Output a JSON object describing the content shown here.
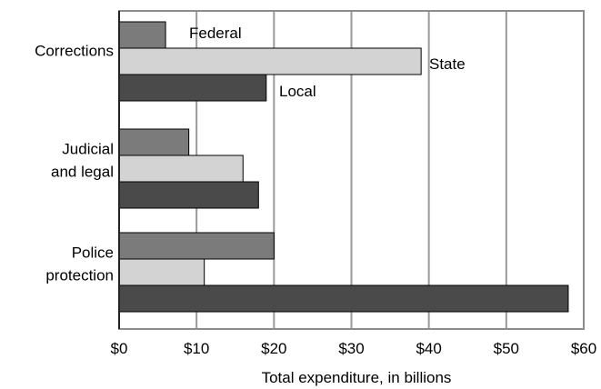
{
  "chart_data": {
    "type": "bar",
    "orientation": "horizontal",
    "categories": [
      [
        "Corrections"
      ],
      [
        "Judicial",
        "and legal"
      ],
      [
        "Police",
        "protection"
      ]
    ],
    "series": [
      {
        "name": "Federal",
        "values": [
          6,
          9,
          20
        ]
      },
      {
        "name": "State",
        "values": [
          39,
          16,
          11
        ]
      },
      {
        "name": "Local",
        "values": [
          19,
          18,
          58
        ]
      }
    ],
    "xlabel": "Total expenditure, in billions",
    "xlim": [
      0,
      60
    ],
    "xticks": [
      {
        "value": 0,
        "label": "$0"
      },
      {
        "value": 10,
        "label": "$10"
      },
      {
        "value": 20,
        "label": "$20"
      },
      {
        "value": 30,
        "label": "$30"
      },
      {
        "value": 40,
        "label": "$40"
      },
      {
        "value": 50,
        "label": "$50"
      },
      {
        "value": 60,
        "label": "$60"
      }
    ],
    "grid": "vertical",
    "legend": "inline labels beside first category bars",
    "colors": {
      "Federal": "#7b7b7b",
      "State": "#d3d3d3",
      "Local": "#4a4a4a",
      "grid": "#9a9a9a",
      "frame": "#8c8c8c",
      "outline": "#000000"
    }
  }
}
